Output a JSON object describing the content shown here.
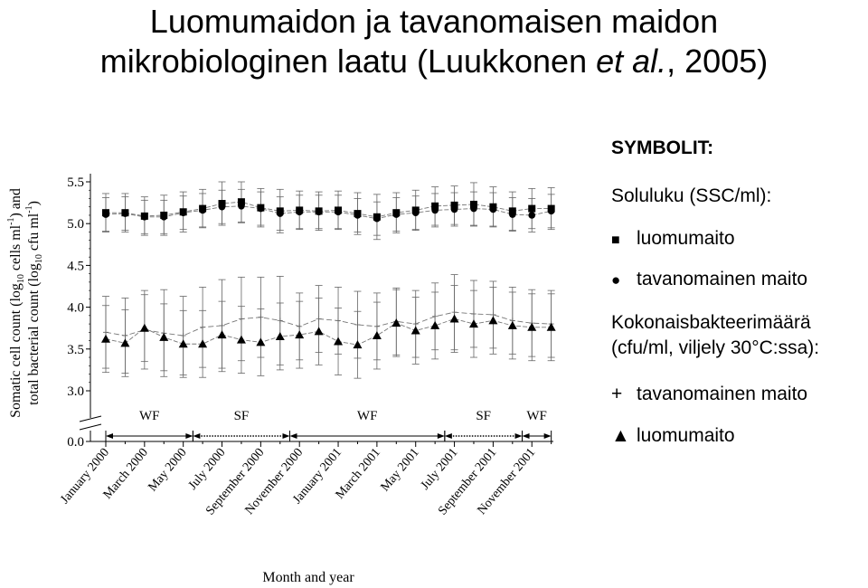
{
  "title": {
    "line1": "Luomumaidon ja tavanomaisen maidon",
    "line2_prefix": "mikrobiologinen laatu (Luukkonen ",
    "line2_italic": "et al.",
    "line2_suffix": ", 2005)"
  },
  "legend": {
    "heading": "SYMBOLIT:",
    "ssc_heading": "Soluluku (SSC/ml):",
    "ssc_items": [
      {
        "symbol": "■",
        "label": "luomumaito"
      },
      {
        "symbol": "●",
        "label": "tavanomainen maito"
      }
    ],
    "tbc_heading_line1": "Kokonaisbakteerimäärä",
    "tbc_heading_line2": "(cfu/ml, viljely 30°C:ssa):",
    "tbc_items": [
      {
        "symbol": "+",
        "label": "tavanomainen maito"
      },
      {
        "symbol": "▲",
        "label": "luomumaito"
      }
    ]
  },
  "chart_data": {
    "type": "line",
    "ylabel_line1": "Somatic cell count (log",
    "ylabel_line1_sub": "10",
    "ylabel_line1_rest": " cells ml",
    "ylabel_line1_sup": "-1",
    "ylabel_line1_end": ") and",
    "ylabel_line2": "total bacterial count (log",
    "ylabel_line2_sub": "10",
    "ylabel_line2_rest": " cfu ml",
    "ylabel_line2_sup": "-1",
    "ylabel_line2_end": ")",
    "xlabel": "Month and year",
    "y_ticks": [
      "0.0",
      "3.0",
      "3.5",
      "4.0",
      "4.5",
      "5.0",
      "5.5"
    ],
    "ylim": [
      3.0,
      5.5
    ],
    "y_axis_break": true,
    "x_tick_labels": [
      "January 2000",
      "March 2000",
      "May 2000",
      "July 2000",
      "September 2000",
      "November 2000",
      "January 2001",
      "March 2001",
      "May 2001",
      "July 2001",
      "September 2001",
      "November 2001"
    ],
    "x_tick_months": [
      1,
      3,
      5,
      7,
      9,
      11,
      13,
      15,
      17,
      19,
      21,
      23
    ],
    "months": [
      1,
      2,
      3,
      4,
      5,
      6,
      7,
      8,
      9,
      10,
      11,
      12,
      13,
      14,
      15,
      16,
      17,
      18,
      19,
      20,
      21,
      22,
      23,
      24
    ],
    "season_periods": [
      {
        "label": "WF",
        "start": 1,
        "end": 5.5,
        "style": "solid"
      },
      {
        "label": "SF",
        "start": 5.5,
        "end": 10.5,
        "style": "dotted"
      },
      {
        "label": "WF",
        "start": 10.5,
        "end": 18.5,
        "style": "solid"
      },
      {
        "label": "SF",
        "start": 18.5,
        "end": 22.5,
        "style": "dotted"
      },
      {
        "label": "WF",
        "start": 22.5,
        "end": 24,
        "style": "solid"
      }
    ],
    "series": [
      {
        "name": "luomumaito",
        "measure": "Soluluku (SSC/ml)",
        "marker": "square",
        "values": [
          5.13,
          5.13,
          5.09,
          5.1,
          5.14,
          5.18,
          5.24,
          5.26,
          5.19,
          5.15,
          5.16,
          5.15,
          5.16,
          5.12,
          5.08,
          5.13,
          5.16,
          5.21,
          5.22,
          5.23,
          5.2,
          5.15,
          5.18,
          5.18
        ],
        "error": [
          0.23,
          0.23,
          0.23,
          0.24,
          0.24,
          0.23,
          0.26,
          0.24,
          0.23,
          0.26,
          0.23,
          0.23,
          0.23,
          0.25,
          0.27,
          0.24,
          0.24,
          0.23,
          0.23,
          0.26,
          0.24,
          0.23,
          0.24,
          0.25
        ]
      },
      {
        "name": "tavanomainen maito",
        "measure": "Soluluku (SSC/ml)",
        "marker": "circle",
        "values": [
          5.11,
          5.12,
          5.08,
          5.08,
          5.13,
          5.16,
          5.2,
          5.21,
          5.18,
          5.12,
          5.14,
          5.14,
          5.14,
          5.1,
          5.06,
          5.11,
          5.13,
          5.16,
          5.17,
          5.18,
          5.17,
          5.11,
          5.1,
          5.15
        ],
        "error": [
          0.2,
          0.2,
          0.2,
          0.2,
          0.2,
          0.2,
          0.2,
          0.2,
          0.2,
          0.2,
          0.2,
          0.2,
          0.2,
          0.2,
          0.2,
          0.2,
          0.2,
          0.2,
          0.2,
          0.2,
          0.2,
          0.2,
          0.2,
          0.2
        ]
      },
      {
        "name": "tavanomainen maito",
        "measure": "Kokonaisbakteerimäärä (cfu/ml, viljely 30°C:ssa)",
        "marker": "plus",
        "values": [
          3.7,
          3.66,
          3.73,
          3.69,
          3.66,
          3.76,
          3.78,
          3.86,
          3.88,
          3.84,
          3.77,
          3.86,
          3.84,
          3.79,
          3.77,
          3.83,
          3.8,
          3.89,
          3.94,
          3.92,
          3.91,
          3.84,
          3.81,
          3.8
        ],
        "error": [
          0.43,
          0.45,
          0.47,
          0.52,
          0.47,
          0.48,
          0.55,
          0.5,
          0.48,
          0.53,
          0.4,
          0.4,
          0.4,
          0.4,
          0.4,
          0.4,
          0.4,
          0.4,
          0.45,
          0.4,
          0.4,
          0.4,
          0.4,
          0.4
        ]
      },
      {
        "name": "luomumaito",
        "measure": "Kokonaisbakteerimäärä (cfu/ml, viljely 30°C:ssa)",
        "marker": "triangle",
        "values": [
          3.62,
          3.57,
          3.75,
          3.64,
          3.56,
          3.56,
          3.67,
          3.61,
          3.58,
          3.65,
          3.67,
          3.71,
          3.59,
          3.55,
          3.66,
          3.81,
          3.72,
          3.78,
          3.86,
          3.8,
          3.84,
          3.78,
          3.76,
          3.76
        ],
        "error": [
          0.4,
          0.4,
          0.4,
          0.4,
          0.4,
          0.4,
          0.4,
          0.4,
          0.4,
          0.4,
          0.4,
          0.4,
          0.4,
          0.4,
          0.4,
          0.4,
          0.4,
          0.4,
          0.4,
          0.4,
          0.4,
          0.4,
          0.4,
          0.4
        ]
      }
    ]
  }
}
